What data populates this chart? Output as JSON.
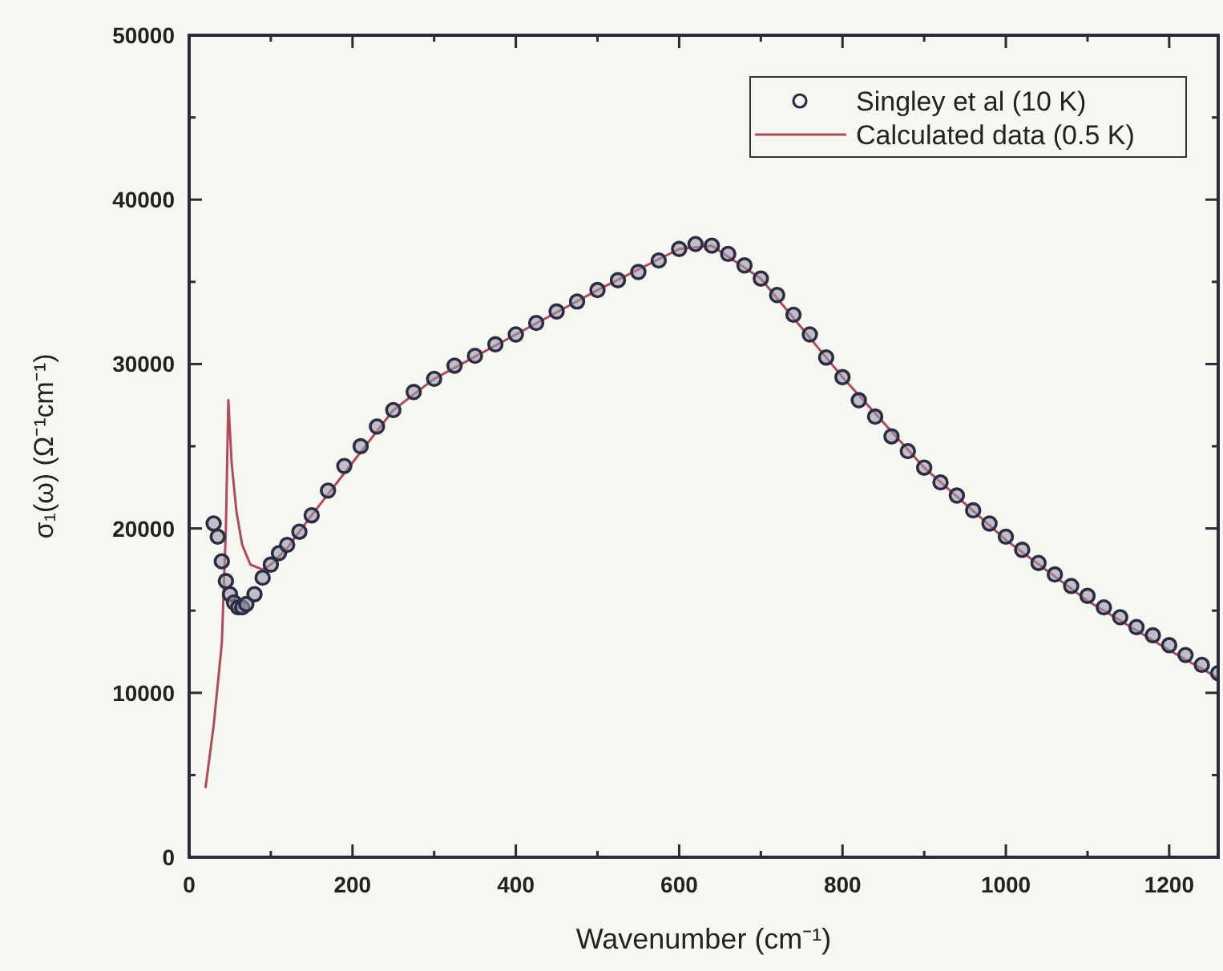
{
  "chart_data": {
    "type": "scatter",
    "xlabel": "Wavenumber (cm⁻¹)",
    "ylabel": "σ₁(ω) (Ω⁻¹cm⁻¹)",
    "xlim": [
      0,
      1260
    ],
    "ylim": [
      0,
      50000
    ],
    "xticks": [
      0,
      {
        "value": 100,
        "label": null
      },
      200,
      {
        "value": 300,
        "label": null
      },
      400,
      {
        "value": 500,
        "label": null
      },
      600,
      {
        "value": 700,
        "label": null
      },
      800,
      {
        "value": 900,
        "label": null
      },
      1000,
      {
        "value": 1100,
        "label": null
      },
      1200
    ],
    "yticks": [
      0,
      {
        "value": 5000,
        "label": null
      },
      10000,
      {
        "value": 15000,
        "label": null
      },
      20000,
      {
        "value": 25000,
        "label": null
      },
      30000,
      {
        "value": 35000,
        "label": null
      },
      40000,
      {
        "value": 45000,
        "label": null
      },
      50000
    ],
    "grid": false,
    "legend": "top right",
    "series": [
      {
        "name": "Singley et al (10 K)",
        "marker": "circle",
        "color": "#2b2c45",
        "x": [
          30,
          35,
          40,
          45,
          50,
          55,
          60,
          65,
          70,
          80,
          90,
          100,
          110,
          120,
          135,
          150,
          170,
          190,
          210,
          230,
          250,
          275,
          300,
          325,
          350,
          375,
          400,
          425,
          450,
          475,
          500,
          525,
          550,
          575,
          600,
          620,
          640,
          660,
          680,
          700,
          720,
          740,
          760,
          780,
          800,
          820,
          840,
          860,
          880,
          900,
          920,
          940,
          960,
          980,
          1000,
          1020,
          1040,
          1060,
          1080,
          1100,
          1120,
          1140,
          1160,
          1180,
          1200,
          1220,
          1240,
          1260
        ],
        "values": [
          20300,
          19500,
          18000,
          16800,
          16000,
          15500,
          15200,
          15200,
          15400,
          16000,
          17000,
          17800,
          18500,
          19000,
          19800,
          20800,
          22300,
          23800,
          25000,
          26200,
          27200,
          28300,
          29100,
          29900,
          30500,
          31200,
          31800,
          32500,
          33200,
          33800,
          34500,
          35100,
          35600,
          36300,
          37000,
          37300,
          37200,
          36700,
          36000,
          35200,
          34200,
          33000,
          31800,
          30400,
          29200,
          27800,
          26800,
          25600,
          24700,
          23700,
          22800,
          22000,
          21100,
          20300,
          19500,
          18700,
          17900,
          17200,
          16500,
          15900,
          15200,
          14600,
          14000,
          13500,
          12900,
          12300,
          11700,
          11200
        ]
      },
      {
        "name": "Calculated data (0.5 K)",
        "type": "line",
        "marker": "none",
        "color": "#b24a5a",
        "x": [
          20,
          30,
          40,
          45,
          48,
          52,
          58,
          65,
          75,
          90,
          100,
          120,
          150,
          200,
          250,
          300,
          400,
          500,
          600,
          640,
          700,
          800,
          900,
          1000,
          1100,
          1200,
          1260
        ],
        "values": [
          4200,
          8000,
          13000,
          20000,
          27800,
          24000,
          21000,
          19000,
          17800,
          17500,
          17800,
          18800,
          20800,
          24000,
          27200,
          29100,
          31800,
          34500,
          37000,
          37200,
          35200,
          29200,
          23700,
          19300,
          15600,
          12600,
          10900
        ]
      }
    ]
  }
}
